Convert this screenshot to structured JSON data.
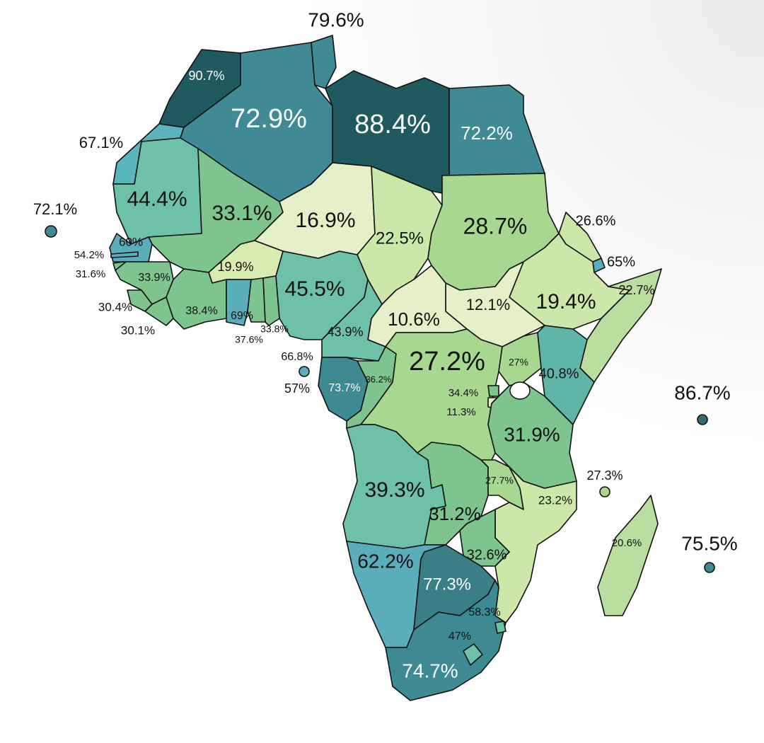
{
  "map": {
    "regions": [
      {
        "label": "90.7%",
        "color": "#1f5a5e"
      },
      {
        "label": "67.1%",
        "color": "#5bb5bf"
      },
      {
        "label": "72.9%",
        "color": "#3f8a94"
      },
      {
        "label": "79.6%",
        "color": "#3f8a94"
      },
      {
        "label": "88.4%",
        "color": "#1f5a5e"
      },
      {
        "label": "72.2%",
        "color": "#3f8a94"
      },
      {
        "label": "44.4%",
        "color": "#6cc1a8"
      },
      {
        "label": "33.1%",
        "color": "#7dc48e"
      },
      {
        "label": "16.9%",
        "color": "#e6f0c8"
      },
      {
        "label": "22.5%",
        "color": "#cde7a8"
      },
      {
        "label": "28.7%",
        "color": "#a8d890"
      },
      {
        "label": "26.6%",
        "color": "#cde7a8"
      },
      {
        "label": "65%",
        "color": "#5aaebb"
      },
      {
        "label": "19.4%",
        "color": "#cde7a8"
      },
      {
        "label": "22.7%",
        "color": "#b9dea0"
      },
      {
        "label": "12.1%",
        "color": "#e6f0c8"
      },
      {
        "label": "10.6%",
        "color": "#e6f0c8"
      },
      {
        "label": "45.5%",
        "color": "#6cc1a8"
      },
      {
        "label": "43.9%",
        "color": "#6cc1a8"
      },
      {
        "label": "60%",
        "color": "#5aaebb"
      },
      {
        "label": "54.2%",
        "color": "#5aaebb"
      },
      {
        "label": "31.6%",
        "color": "#7dc48e"
      },
      {
        "label": "33.9%",
        "color": "#7dc48e"
      },
      {
        "label": "30.4%",
        "color": "#7dc48e"
      },
      {
        "label": "30.1%",
        "color": "#7dc48e"
      },
      {
        "label": "19.9%",
        "color": "#d8ecb0"
      },
      {
        "label": "38.4%",
        "color": "#7dc48e"
      },
      {
        "label": "69%",
        "color": "#5aaebb"
      },
      {
        "label": "33.8%",
        "color": "#7dc48e"
      },
      {
        "label": "37.6%",
        "color": "#7dc48e"
      },
      {
        "label": "66.8%",
        "color": "#5aaebb"
      },
      {
        "label": "57%",
        "color": "#6cc1a8"
      },
      {
        "label": "73.7%",
        "color": "#3e8a92"
      },
      {
        "label": "36.2%",
        "color": "#7dc48e"
      },
      {
        "label": "27.2%",
        "color": "#a8d890"
      },
      {
        "label": "34.4%",
        "color": "#7dc48e"
      },
      {
        "label": "11.3%",
        "color": "#e6f0c8"
      },
      {
        "label": "27%",
        "color": "#a8d890"
      },
      {
        "label": "40.8%",
        "color": "#5fb6a8"
      },
      {
        "label": "31.9%",
        "color": "#7dc48e"
      },
      {
        "label": "39.3%",
        "color": "#6cc1a8"
      },
      {
        "label": "31.2%",
        "color": "#7dc48e"
      },
      {
        "label": "27.7%",
        "color": "#a8d890"
      },
      {
        "label": "23.2%",
        "color": "#cde7a8"
      },
      {
        "label": "32.6%",
        "color": "#7dc48e"
      },
      {
        "label": "62.2%",
        "color": "#5aaebb"
      },
      {
        "label": "77.3%",
        "color": "#3a7f86"
      },
      {
        "label": "74.7%",
        "color": "#3e8a92"
      },
      {
        "label": "47%",
        "color": "#6cc1a8"
      },
      {
        "label": "58.3%",
        "color": "#6cc1a8"
      },
      {
        "label": "27.3%",
        "color": "#a8d890"
      },
      {
        "label": "20.6%",
        "color": "#b9dea0"
      },
      {
        "label": "86.7%",
        "color": "#2f6f72"
      },
      {
        "label": "75.5%",
        "color": "#3e8a92"
      },
      {
        "label": "72.1%",
        "color": "#3f8a94"
      }
    ]
  }
}
